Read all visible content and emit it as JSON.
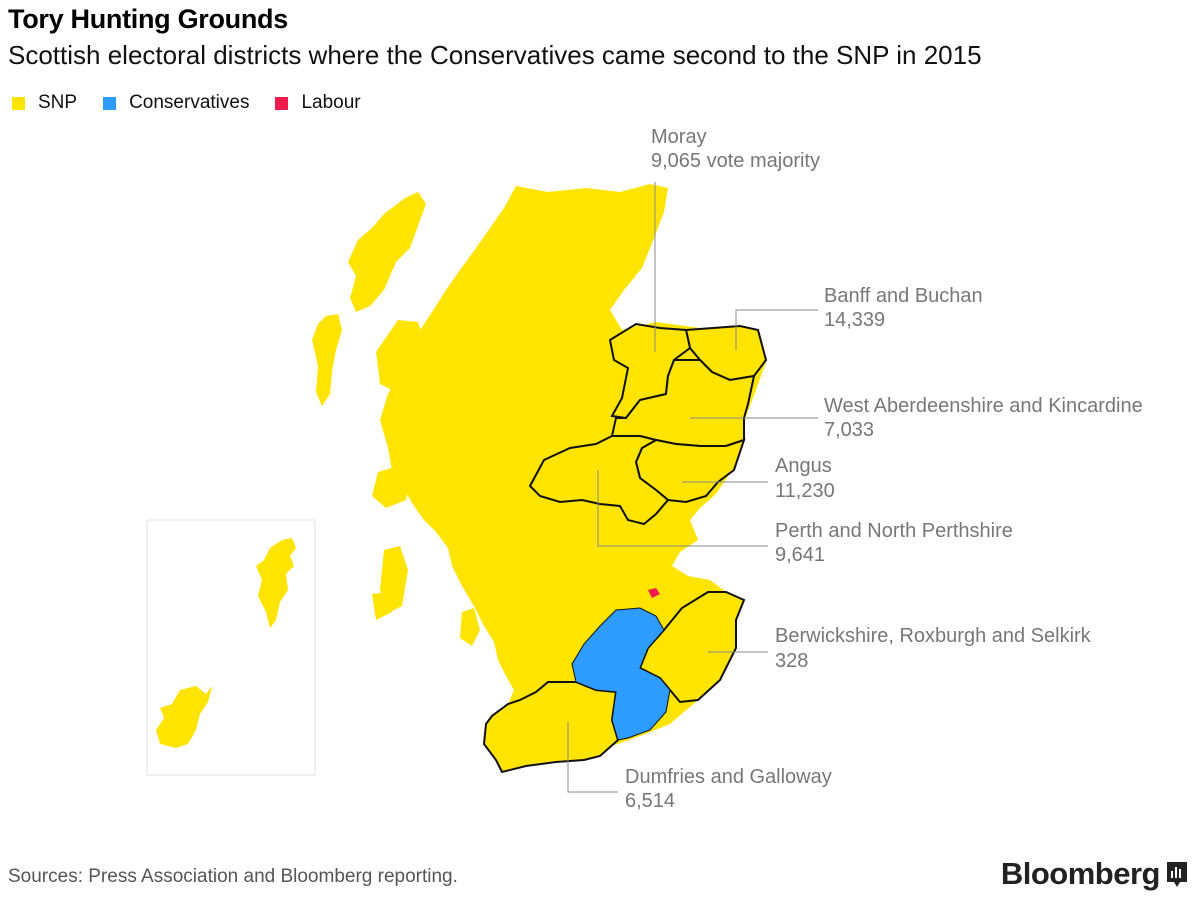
{
  "header": {
    "title": "Tory Hunting Grounds",
    "subtitle": "Scottish electoral districts where the Conservatives came second to the SNP in 2015"
  },
  "legend": [
    {
      "label": "SNP",
      "color": "#ffe400"
    },
    {
      "label": "Conservatives",
      "color": "#2e9bff"
    },
    {
      "label": "Labour",
      "color": "#ef1b4c"
    }
  ],
  "colors": {
    "snp": "#ffe400",
    "snp_light": "#fff04a",
    "conservative": "#2e9bff",
    "labour": "#ef1b4c",
    "label_text": "#777777",
    "leader_line": "#8a8a8a"
  },
  "districts": [
    {
      "key": "moray",
      "name": "Moray",
      "value": "9,065 vote majority"
    },
    {
      "key": "banff",
      "name": "Banff and Buchan",
      "value": "14,339"
    },
    {
      "key": "west_aberdeenshire",
      "name": "West Aberdeenshire and Kincardine",
      "value": "7,033"
    },
    {
      "key": "angus",
      "name": "Angus",
      "value": "11,230"
    },
    {
      "key": "perth",
      "name": "Perth and North Perthshire",
      "value": "9,641"
    },
    {
      "key": "berwickshire",
      "name": "Berwickshire, Roxburgh and Selkirk",
      "value": "328"
    },
    {
      "key": "dumfries",
      "name": "Dumfries and Galloway",
      "value": "6,514"
    }
  ],
  "footer": {
    "source": "Sources: Press Association and Bloomberg reporting.",
    "brand": "Bloomberg"
  }
}
